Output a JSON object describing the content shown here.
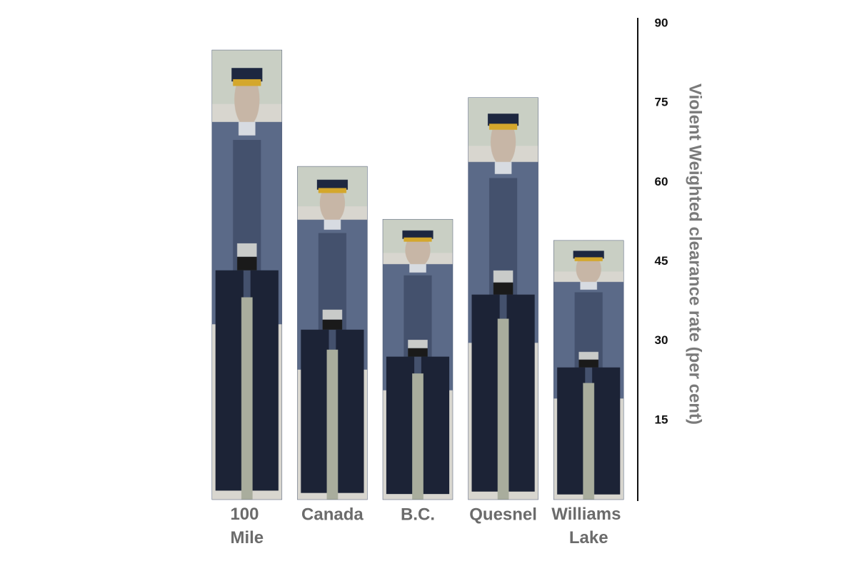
{
  "chart_data": {
    "type": "bar",
    "categories": [
      "100 Mile",
      "Canada",
      "B.C.",
      "Quesnel",
      "Williams Lake"
    ],
    "values": [
      85,
      63,
      53,
      76,
      49
    ],
    "color": "#4a5873",
    "ylim": [
      0,
      90
    ],
    "yticks": [
      15,
      30,
      45,
      60,
      75,
      90
    ],
    "y_axis_label": "Violent Weighted clearance rate (per cent)",
    "y_axis_side": "right"
  }
}
